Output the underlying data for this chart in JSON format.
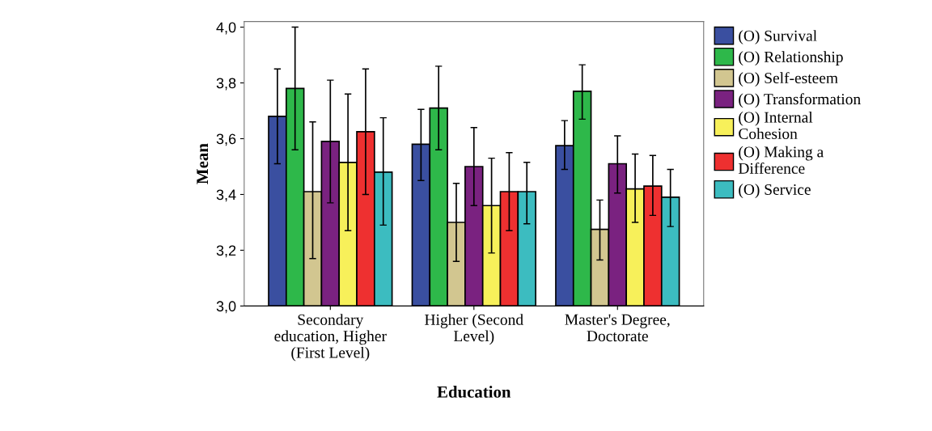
{
  "chart_data": {
    "type": "bar",
    "xlabel": "Education",
    "ylabel": "Mean",
    "categories": [
      "Secondary\neducation, Higher\n(First Level)",
      "Higher (Second\nLevel)",
      "Master's Degree,\nDoctorate"
    ],
    "ylim": [
      3.0,
      4.02
    ],
    "yticks": [
      {
        "value": 3.0,
        "label": "3,0"
      },
      {
        "value": 3.2,
        "label": "3,2"
      },
      {
        "value": 3.4,
        "label": "3,4"
      },
      {
        "value": 3.6,
        "label": "3,6"
      },
      {
        "value": 3.8,
        "label": "3,8"
      },
      {
        "value": 4.0,
        "label": "4,0"
      }
    ],
    "grid": false,
    "legend": "right",
    "series": [
      {
        "name": "(O) Survival",
        "color": "#3a4fa0",
        "values": [
          3.68,
          3.58,
          3.575
        ],
        "errors": [
          [
            3.51,
            3.85
          ],
          [
            3.45,
            3.705
          ],
          [
            3.49,
            3.665
          ]
        ]
      },
      {
        "name": "(O) Relationship",
        "color": "#2eb84a",
        "values": [
          3.78,
          3.71,
          3.77
        ],
        "errors": [
          [
            3.56,
            4.0
          ],
          [
            3.56,
            3.86
          ],
          [
            3.67,
            3.865
          ]
        ]
      },
      {
        "name": "(O) Self-esteem",
        "color": "#d2c690",
        "values": [
          3.41,
          3.3,
          3.275
        ],
        "errors": [
          [
            3.17,
            3.66
          ],
          [
            3.16,
            3.44
          ],
          [
            3.165,
            3.38
          ]
        ]
      },
      {
        "name": "(O) Transformation",
        "color": "#7a2280",
        "values": [
          3.59,
          3.5,
          3.51
        ],
        "errors": [
          [
            3.37,
            3.81
          ],
          [
            3.36,
            3.64
          ],
          [
            3.405,
            3.61
          ]
        ]
      },
      {
        "name": "(O) Internal\nCohesion",
        "color": "#f7f05a",
        "values": [
          3.515,
          3.36,
          3.42
        ],
        "errors": [
          [
            3.27,
            3.76
          ],
          [
            3.19,
            3.53
          ],
          [
            3.3,
            3.545
          ]
        ]
      },
      {
        "name": "(O) Making a\nDifference",
        "color": "#ee3030",
        "values": [
          3.625,
          3.41,
          3.43
        ],
        "errors": [
          [
            3.4,
            3.85
          ],
          [
            3.27,
            3.55
          ],
          [
            3.325,
            3.54
          ]
        ]
      },
      {
        "name": "(O) Service",
        "color": "#3cbcc0",
        "values": [
          3.48,
          3.41,
          3.39
        ],
        "errors": [
          [
            3.29,
            3.675
          ],
          [
            3.295,
            3.515
          ],
          [
            3.285,
            3.49
          ]
        ]
      }
    ]
  }
}
